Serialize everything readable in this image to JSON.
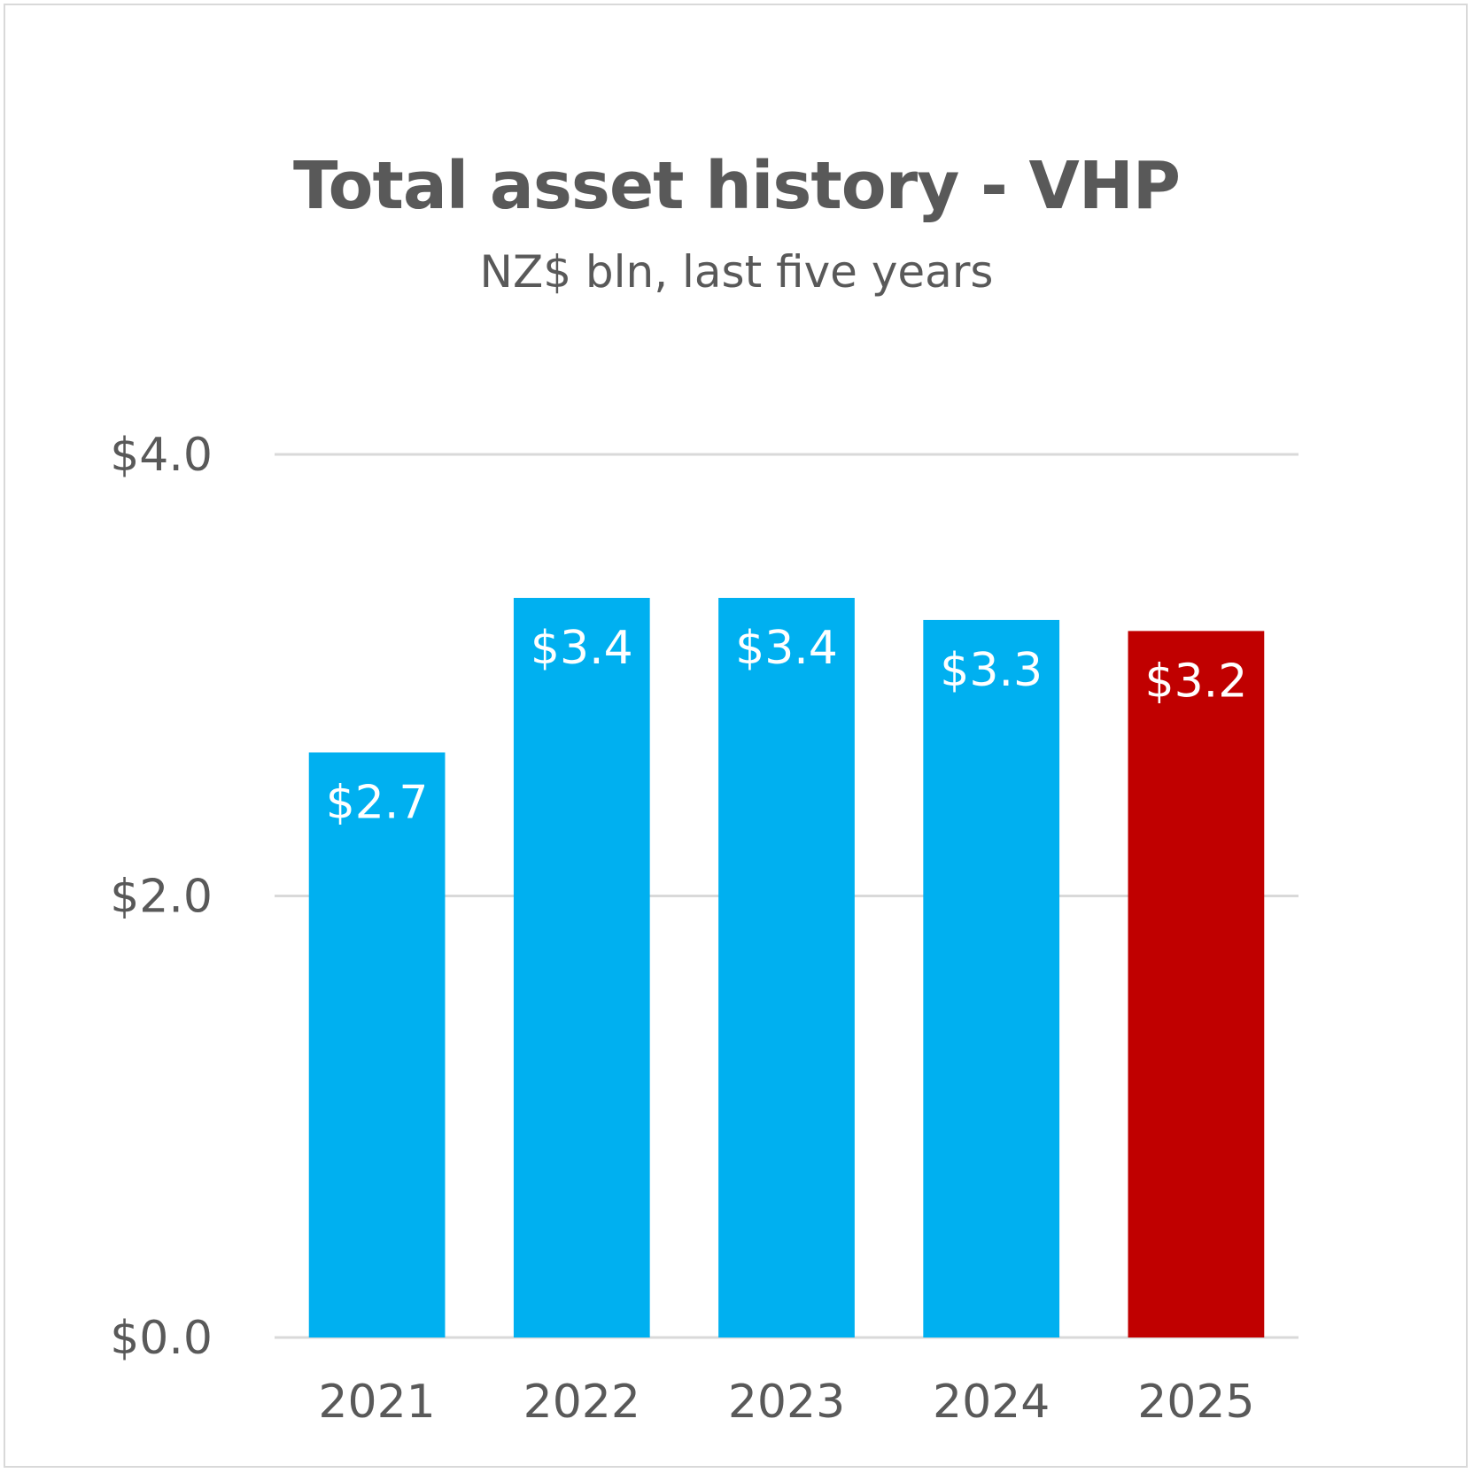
{
  "chart_data": {
    "type": "bar",
    "title": "Total asset history - VHP",
    "subtitle": "NZ$ bln, last five years",
    "categories": [
      "2021",
      "2022",
      "2023",
      "2024",
      "2025"
    ],
    "values": [
      2.65,
      3.35,
      3.35,
      3.25,
      3.2
    ],
    "data_labels": [
      "$2.7",
      "$3.4",
      "$3.4",
      "$3.3",
      "$3.2"
    ],
    "ylim": [
      0,
      4
    ],
    "yticks": [
      0,
      2,
      4
    ],
    "ytick_labels": [
      "$0.0",
      "$2.0",
      "$4.0"
    ],
    "grid": true,
    "legend": "none",
    "colors": {
      "bar": "#00b0f0",
      "highlight_bar": "#c00000",
      "gridline": "#d9d9d9",
      "text": "#595959",
      "data_label": "#ffffff"
    },
    "highlight_index": 4
  }
}
